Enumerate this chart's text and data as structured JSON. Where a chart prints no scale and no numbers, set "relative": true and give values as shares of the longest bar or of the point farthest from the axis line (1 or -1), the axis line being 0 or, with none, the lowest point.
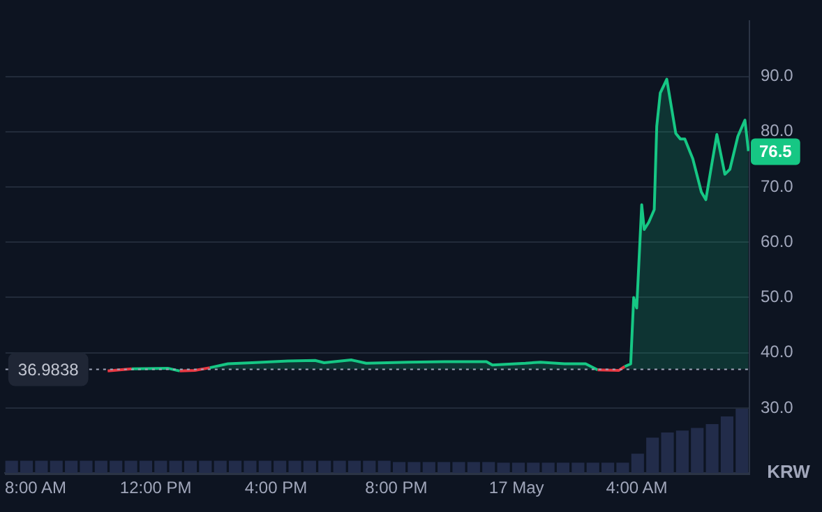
{
  "chart_data": [
    {
      "type": "area",
      "ylabel": "KRW",
      "xlim": [
        "--05-16T07:00",
        "--05-17T07:45"
      ],
      "xticks": [
        {
          "value": "--05-16T08:00",
          "label": "8:00 AM"
        },
        {
          "value": "--05-16T12:00",
          "label": "12:00 PM"
        },
        {
          "value": "--05-16T16:00",
          "label": "4:00 PM"
        },
        {
          "value": "--05-16T20:00",
          "label": "8:00 PM"
        },
        {
          "value": "--05-17T00:00",
          "label": "17 May"
        },
        {
          "value": "--05-17T04:00",
          "label": "4:00 AM"
        }
      ],
      "ylim": [
        18,
        100
      ],
      "yticks": [
        {
          "value": 30,
          "label": "30.0"
        },
        {
          "value": 40,
          "label": "40.0"
        },
        {
          "value": 50,
          "label": "50.0"
        },
        {
          "value": 60,
          "label": "60.0"
        },
        {
          "value": 70,
          "label": "70.0"
        },
        {
          "value": 80,
          "label": "80.0"
        },
        {
          "value": 90,
          "label": "90.0"
        }
      ],
      "grid": "y",
      "legend": false,
      "ref_lines": [
        {
          "axis": "y",
          "value": 36.9838,
          "label": "36.9838",
          "line_style": "dotted",
          "color": "#a1a7bb"
        }
      ],
      "series": [
        {
          "color": "#16c784",
          "x": [
            "--05-16T10:24",
            "--05-16T11:12",
            "--05-16T12:24",
            "--05-16T12:48",
            "--05-16T13:18",
            "--05-16T13:48",
            "--05-16T14:24",
            "--05-16T15:12",
            "--05-16T16:24",
            "--05-16T17:18",
            "--05-16T17:36",
            "--05-16T18:30",
            "--05-16T19:00",
            "--05-16T20:24",
            "--05-16T21:36",
            "--05-16T23:00",
            "--05-16T23:12",
            "--05-17T00:18",
            "--05-17T00:48",
            "--05-17T01:36",
            "--05-17T02:18",
            "--05-17T02:42",
            "--05-17T03:24",
            "--05-17T03:36",
            "--05-17T03:48",
            "--05-17T03:54",
            "--05-17T04:00",
            "--05-17T04:10",
            "--05-17T04:15",
            "--05-17T04:24",
            "--05-17T04:35",
            "--05-17T04:40",
            "--05-17T04:47",
            "--05-17T05:00",
            "--05-17T05:18",
            "--05-17T05:27",
            "--05-17T05:36",
            "--05-17T05:52",
            "--05-17T06:09",
            "--05-17T06:18",
            "--05-17T06:30",
            "--05-17T06:40",
            "--05-17T06:56",
            "--05-17T07:06",
            "--05-17T07:22",
            "--05-17T07:36",
            "--05-17T07:43"
          ],
          "values": [
            36.7,
            37.1,
            37.2,
            36.7,
            36.8,
            37.3,
            38.0,
            38.2,
            38.5,
            38.6,
            38.2,
            38.7,
            38.1,
            38.3,
            38.4,
            38.4,
            37.8,
            38.1,
            38.3,
            38.0,
            38.0,
            36.9,
            36.8,
            37.5,
            38.0,
            50.0,
            48.1,
            66.8,
            62.3,
            63.6,
            65.9,
            81.0,
            87.0,
            89.5,
            79.7,
            78.7,
            78.7,
            75.1,
            69.1,
            67.7,
            74.2,
            79.5,
            72.3,
            73.2,
            79.2,
            82.1,
            76.5
          ],
          "colors": [
            "#ea3943",
            "#16c784",
            "#16c784",
            "#ea3943",
            "#ea3943",
            "#16c784",
            "#16c784",
            "#16c784",
            "#16c784",
            "#16c784",
            "#16c784",
            "#16c784",
            "#16c784",
            "#16c784",
            "#16c784",
            "#16c784",
            "#16c784",
            "#16c784",
            "#16c784",
            "#16c784",
            "#16c784",
            "#ea3943",
            "#ea3943",
            "#16c784",
            "#16c784",
            "#16c784",
            "#16c784",
            "#16c784",
            "#16c784",
            "#16c784",
            "#16c784",
            "#16c784",
            "#16c784",
            "#16c784",
            "#16c784",
            "#16c784",
            "#16c784",
            "#16c784",
            "#16c784",
            "#16c784",
            "#16c784",
            "#16c784",
            "#16c784",
            "#16c784",
            "#16c784",
            "#16c784",
            "#16c784"
          ],
          "value_labels": [
            null,
            null,
            null,
            null,
            null,
            null,
            null,
            null,
            null,
            null,
            null,
            null,
            null,
            null,
            null,
            null,
            null,
            null,
            null,
            null,
            null,
            null,
            null,
            null,
            null,
            null,
            null,
            null,
            null,
            null,
            null,
            null,
            null,
            null,
            null,
            null,
            null,
            null,
            null,
            null,
            null,
            null,
            null,
            null,
            null,
            null,
            "76.5"
          ]
        }
      ]
    },
    {
      "type": "bar",
      "relative": true,
      "color": "#222c4a",
      "categories": [
        null,
        null,
        null,
        null,
        null,
        null,
        null,
        null,
        null,
        null,
        null,
        null,
        null,
        null,
        null,
        null,
        null,
        null,
        null,
        null,
        null,
        null,
        null,
        null,
        null,
        null,
        null,
        null,
        null,
        null,
        null,
        null,
        null,
        null,
        null,
        null,
        null,
        null,
        null,
        null,
        null,
        null,
        null,
        null,
        null,
        null,
        null,
        null,
        null,
        null
      ],
      "values": [
        0.19,
        0.19,
        0.19,
        0.19,
        0.19,
        0.19,
        0.19,
        0.19,
        0.19,
        0.19,
        0.19,
        0.19,
        0.19,
        0.19,
        0.19,
        0.19,
        0.19,
        0.19,
        0.19,
        0.19,
        0.19,
        0.19,
        0.19,
        0.19,
        0.19,
        0.19,
        0.17,
        0.17,
        0.17,
        0.17,
        0.17,
        0.17,
        0.17,
        0.16,
        0.16,
        0.16,
        0.16,
        0.16,
        0.16,
        0.16,
        0.16,
        0.16,
        0.3,
        0.55,
        0.63,
        0.66,
        0.7,
        0.76,
        0.88,
        1.0
      ]
    }
  ]
}
